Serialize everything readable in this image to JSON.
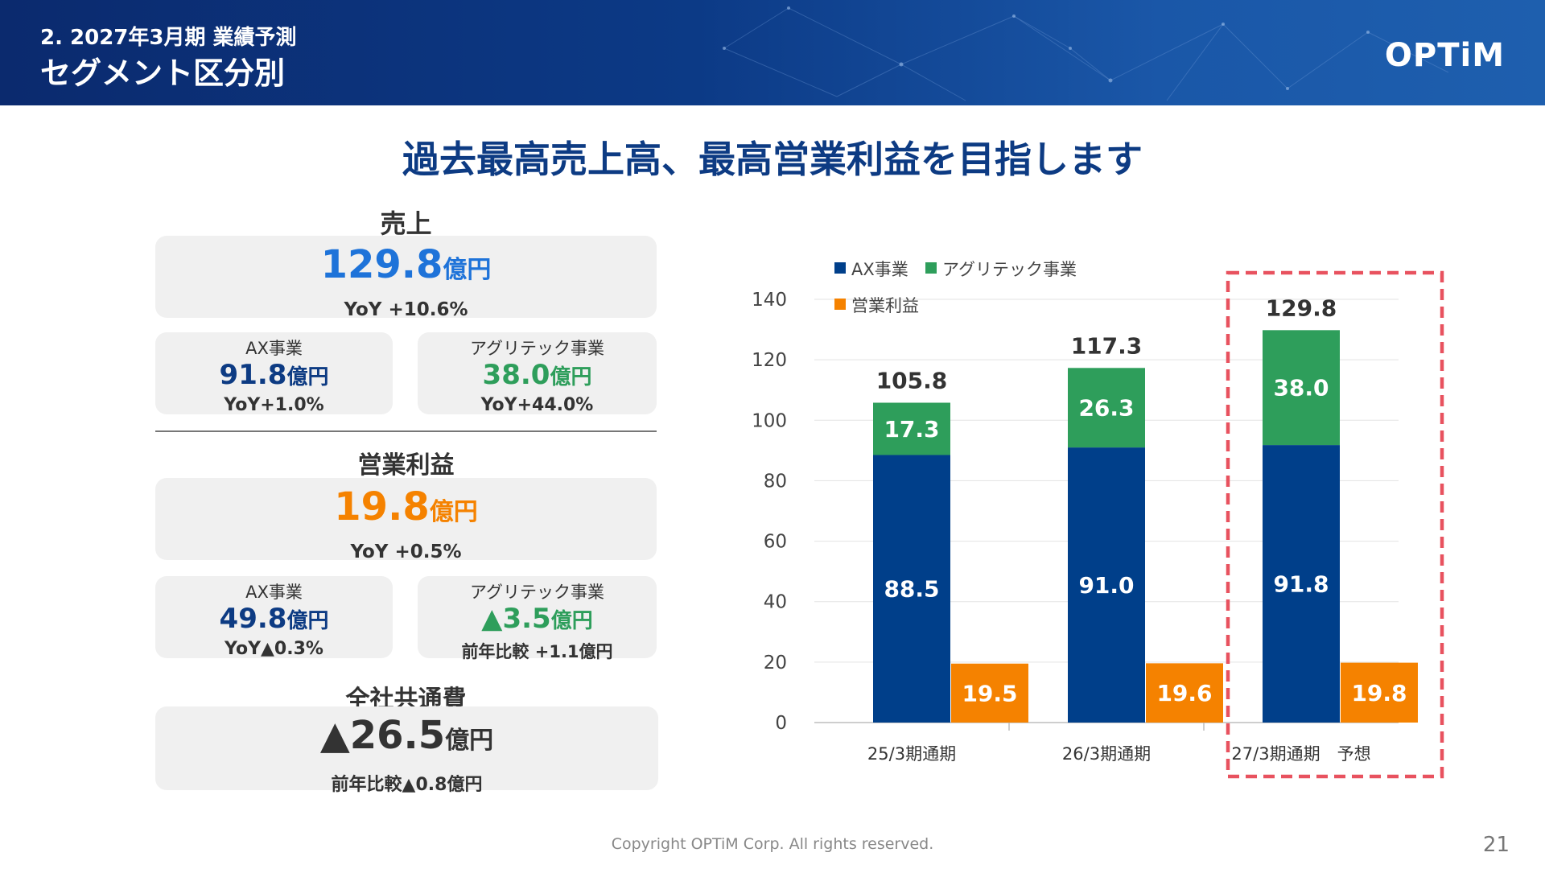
{
  "header": {
    "section": "2. 2027年3月期 業績予測",
    "title": "セグメント区分別",
    "logo": "OPTiM"
  },
  "headline": "過去最高売上高、最高営業利益を目指します",
  "sales": {
    "label": "売上",
    "value": "129.8",
    "unit": "億円",
    "yoy": "YoY +10.6%",
    "ax": {
      "label": "AX事業",
      "value": "91.8",
      "unit": "億円",
      "yoy": "YoY+1.0%"
    },
    "agri": {
      "label": "アグリテック事業",
      "value": "38.0",
      "unit": "億円",
      "yoy": "YoY+44.0%"
    }
  },
  "profit": {
    "label": "営業利益",
    "value": "19.8",
    "unit": "億円",
    "yoy": "YoY +0.5%",
    "ax": {
      "label": "AX事業",
      "value": "49.8",
      "unit": "億円",
      "yoy": "YoY▲0.3%"
    },
    "agri": {
      "label": "アグリテック事業",
      "value": "▲3.5",
      "unit": "億円",
      "yoy": "前年比較 +1.1億円"
    }
  },
  "common": {
    "label": "全社共通費",
    "value": "▲26.5",
    "unit": "億円",
    "yoy": "前年比較▲0.8億円"
  },
  "colors": {
    "ax": "#003f8a",
    "agri": "#2e9e5b",
    "profit": "#f58200",
    "sales_value": "#1e73d9",
    "profit_value": "#f58200",
    "highlight": "#e8525f"
  },
  "chart_data": {
    "type": "bar",
    "categories": [
      "25/3期通期",
      "26/3期通期",
      "27/3期通期　予想"
    ],
    "series": [
      {
        "name": "AX事業",
        "values": [
          88.5,
          91.0,
          91.8
        ],
        "stack": "sales"
      },
      {
        "name": "アグリテック事業",
        "values": [
          17.3,
          26.3,
          38.0
        ],
        "stack": "sales"
      },
      {
        "name": "営業利益",
        "values": [
          19.5,
          19.6,
          19.8
        ],
        "stack": "profit"
      }
    ],
    "totals": [
      "105.8",
      "117.3",
      "129.8"
    ],
    "data_labels": {
      "ax": [
        "88.5",
        "91.0",
        "91.8"
      ],
      "agri": [
        "17.3",
        "26.3",
        "38.0"
      ],
      "profit": [
        "19.5",
        "19.6",
        "19.8"
      ]
    },
    "y_ticks": [
      "0",
      "20",
      "40",
      "60",
      "80",
      "100",
      "120",
      "140"
    ],
    "ylim": [
      0,
      140
    ],
    "grid": true,
    "legend": "top-left",
    "highlighted_category": "27/3期通期　予想"
  },
  "footer": {
    "copyright": "Copyright OPTiM Corp. All rights reserved.",
    "page": "21"
  }
}
